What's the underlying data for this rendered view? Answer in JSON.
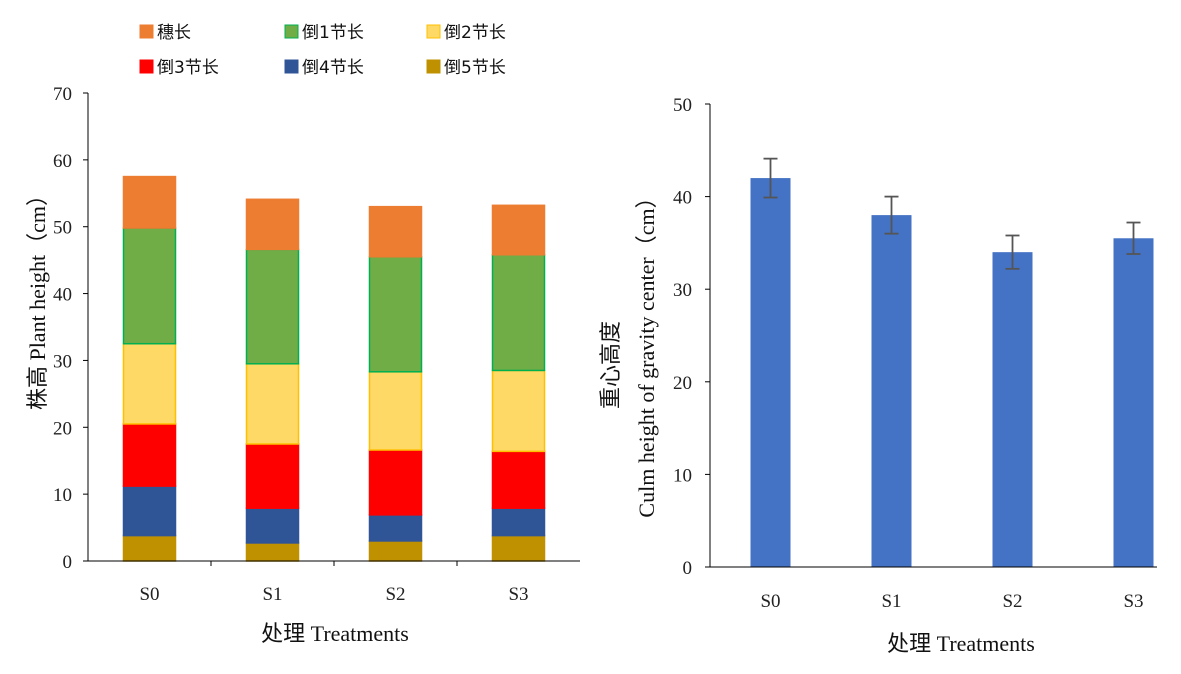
{
  "chart_data": [
    {
      "type": "bar",
      "stacked": true,
      "categories": [
        "S0",
        "S1",
        "S2",
        "S3"
      ],
      "series": [
        {
          "name": "倒5节长",
          "values": [
            3.8,
            2.7,
            3.0,
            3.8
          ],
          "color": "#BF9000",
          "stroke": "#BF9000"
        },
        {
          "name": "倒4节长",
          "values": [
            7.4,
            5.2,
            3.9,
            4.1
          ],
          "color": "#2F5597",
          "stroke": "#2F5597"
        },
        {
          "name": "倒3节长",
          "values": [
            9.3,
            9.6,
            9.7,
            8.5
          ],
          "color": "#FF0000",
          "stroke": "#FF0000"
        },
        {
          "name": "倒2节长",
          "values": [
            12.0,
            12.0,
            11.7,
            12.1
          ],
          "color": "#FFD966",
          "stroke": "#FFC000"
        },
        {
          "name": "倒1节长",
          "values": [
            17.3,
            17.1,
            17.2,
            17.3
          ],
          "color": "#70AD47",
          "stroke": "#00B050"
        },
        {
          "name": "穗长",
          "values": [
            7.7,
            7.5,
            7.5,
            7.4
          ],
          "color": "#ED7D31",
          "stroke": "#ED7D31"
        }
      ],
      "legend_order": [
        "穗长",
        "倒1节长",
        "倒2节长",
        "倒3节长",
        "倒4节长",
        "倒5节长"
      ],
      "legend_position": "top",
      "ylim": [
        0,
        70
      ],
      "yticks": [
        "0",
        "10",
        "20",
        "30",
        "40",
        "50",
        "60",
        "70"
      ],
      "ylabel": "株高  Plant height（cm）",
      "xlabel": "处理 Treatments",
      "grid": false
    },
    {
      "type": "bar",
      "categories": [
        "S0",
        "S1",
        "S2",
        "S3"
      ],
      "values": [
        42.0,
        38.0,
        34.0,
        35.5
      ],
      "errors": [
        2.1,
        2.0,
        1.8,
        1.7
      ],
      "color": "#4472C4",
      "ylim": [
        0,
        50
      ],
      "yticks": [
        "0",
        "10",
        "20",
        "30",
        "40",
        "50"
      ],
      "ylabel_line1": "重心高度",
      "ylabel_line2": "Culm height of gravity center（cm）",
      "xlabel": "处理 Treatments",
      "grid": false
    }
  ]
}
